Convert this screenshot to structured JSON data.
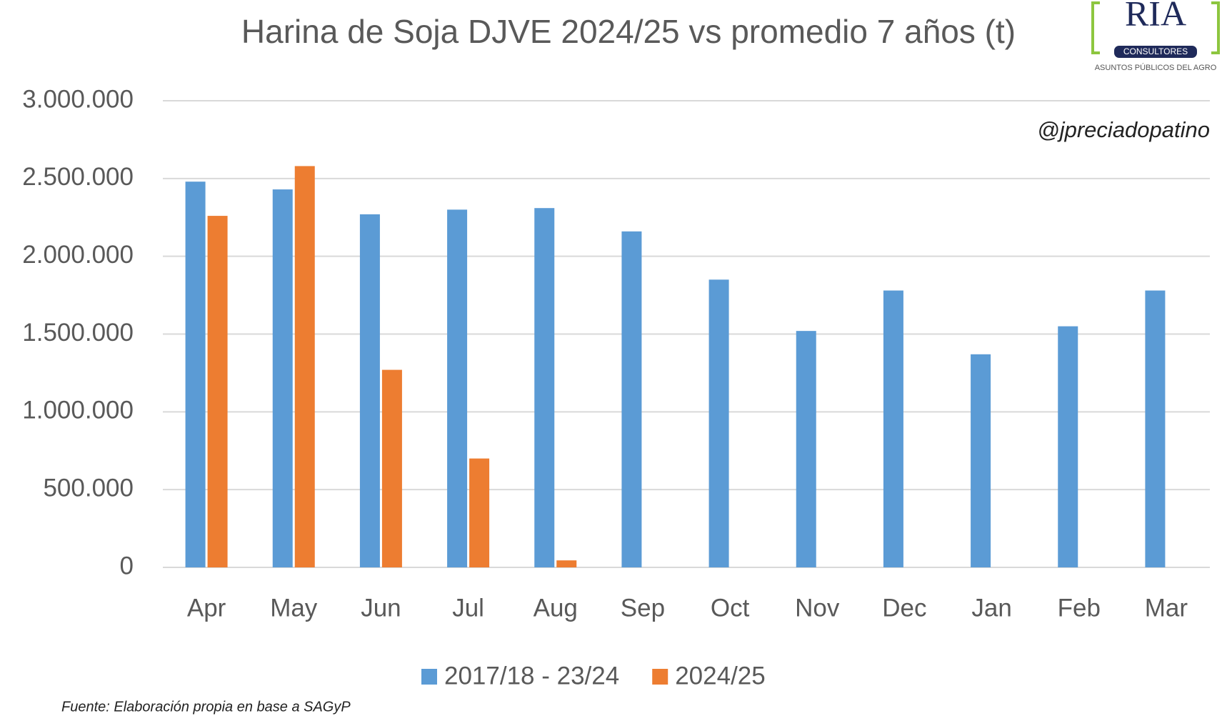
{
  "chart_data": {
    "type": "bar",
    "title": "Harina de Soja DJVE 2024/25 vs promedio 7 años (t)",
    "annotation": "@jpreciadopatino",
    "source": "Fuente: Elaboración propia en base a SAGyP",
    "logo": {
      "name": "RIA",
      "subtitle": "CONSULTORES",
      "tagline": "ASUNTOS PÚBLICOS DEL AGRO"
    },
    "categories": [
      "Apr",
      "May",
      "Jun",
      "Jul",
      "Aug",
      "Sep",
      "Oct",
      "Nov",
      "Dec",
      "Jan",
      "Feb",
      "Mar"
    ],
    "series": [
      {
        "name": "2017/18 - 23/24",
        "color": "#5b9bd5",
        "values": [
          2480000,
          2430000,
          2270000,
          2300000,
          2310000,
          2160000,
          1850000,
          1520000,
          1780000,
          1370000,
          1550000,
          1780000
        ]
      },
      {
        "name": "2024/25",
        "color": "#ed7d31",
        "values": [
          2260000,
          2580000,
          1270000,
          700000,
          45000,
          null,
          null,
          null,
          null,
          null,
          null,
          null
        ]
      }
    ],
    "ylim": [
      0,
      3000000
    ],
    "yticks": [
      0,
      {
        "value": 500000,
        "label": "500.000"
      },
      {
        "value": 1000000,
        "label": "1.000.000"
      },
      {
        "value": 1500000,
        "label": "1.500.000"
      },
      {
        "value": 2000000,
        "label": "2.000.000"
      },
      {
        "value": 2500000,
        "label": "2.500.000"
      },
      {
        "value": 3000000,
        "label": "3.000.000"
      }
    ],
    "grid": true,
    "legend": "bottom"
  }
}
